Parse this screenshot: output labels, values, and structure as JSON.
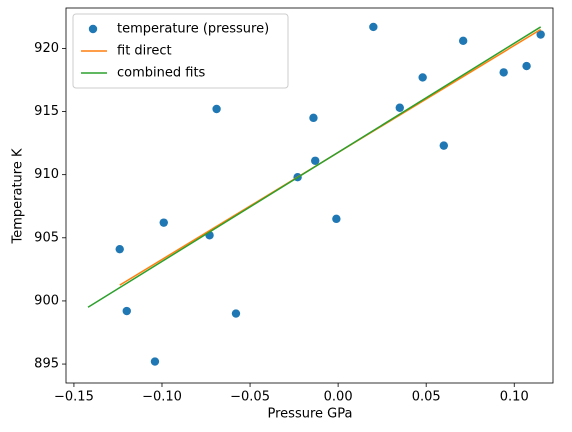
{
  "chart_data": {
    "type": "scatter",
    "xlabel": "Pressure GPa",
    "ylabel": "Temperature K",
    "xlim": [
      -0.1545,
      0.122
    ],
    "ylim": [
      893.5,
      923.2
    ],
    "xticks": [
      {
        "value": -0.15,
        "label": "−0.15"
      },
      {
        "value": -0.1,
        "label": "−0.10"
      },
      {
        "value": -0.05,
        "label": "−0.05"
      },
      {
        "value": 0,
        "label": "0.00"
      },
      {
        "value": 0.05,
        "label": "0.05"
      },
      {
        "value": 0.1,
        "label": "0.10"
      }
    ],
    "yticks": [
      895,
      900,
      905,
      910,
      915,
      920
    ],
    "legend": "upper left",
    "series": [
      {
        "name": "temperature (pressure)",
        "type": "scatter",
        "color": "#1f77b4",
        "x": [
          -0.124,
          -0.12,
          -0.104,
          -0.099,
          -0.073,
          -0.069,
          -0.058,
          -0.023,
          -0.014,
          -0.013,
          -0.001,
          0.02,
          0.035,
          0.048,
          0.06,
          0.071,
          0.094,
          0.107,
          0.115
        ],
        "values": [
          904.1,
          899.2,
          895.2,
          906.2,
          905.2,
          915.2,
          899.0,
          909.8,
          914.5,
          911.1,
          906.5,
          921.7,
          915.3,
          917.7,
          912.3,
          920.6,
          918.1,
          918.6,
          921.1
        ]
      },
      {
        "name": "fit direct",
        "type": "line",
        "color": "#ff7f0e",
        "x": [
          -0.124,
          0.115
        ],
        "values": [
          901.25,
          921.5
        ]
      },
      {
        "name": "combined fits",
        "type": "line",
        "color": "#2ca02c",
        "x": [
          -0.142,
          0.115
        ],
        "values": [
          899.5,
          921.7
        ]
      }
    ]
  }
}
